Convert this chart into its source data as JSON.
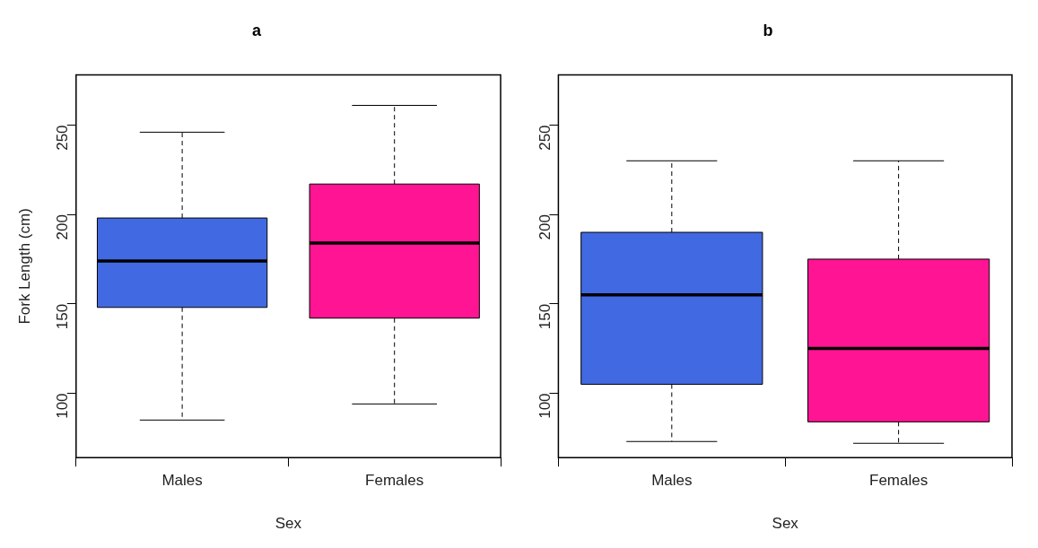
{
  "chart_data": [
    {
      "type": "box",
      "title": "a",
      "xlabel": "Sex",
      "ylabel": "Fork Length (cm)",
      "categories": [
        "Males",
        "Females"
      ],
      "colors": [
        "#4169e1",
        "#ff1493"
      ],
      "boxes": [
        {
          "low": 85,
          "q1": 148,
          "median": 174,
          "q3": 198,
          "high": 246
        },
        {
          "low": 94,
          "q1": 142,
          "median": 184,
          "q3": 217,
          "high": 261
        }
      ],
      "ylim": [
        64,
        278
      ],
      "yticks": [
        100,
        150,
        200,
        250
      ],
      "grid": false,
      "legend": false
    },
    {
      "type": "box",
      "title": "b",
      "xlabel": "Sex",
      "categories": [
        "Males",
        "Females"
      ],
      "colors": [
        "#4169e1",
        "#ff1493"
      ],
      "boxes": [
        {
          "low": 73,
          "q1": 105,
          "median": 155,
          "q3": 190,
          "high": 230
        },
        {
          "low": 72,
          "q1": 84,
          "median": 125,
          "q3": 175,
          "high": 230
        }
      ],
      "ylim": [
        64,
        278
      ],
      "yticks": [
        100,
        150,
        200,
        250
      ],
      "grid": false,
      "legend": false
    }
  ]
}
